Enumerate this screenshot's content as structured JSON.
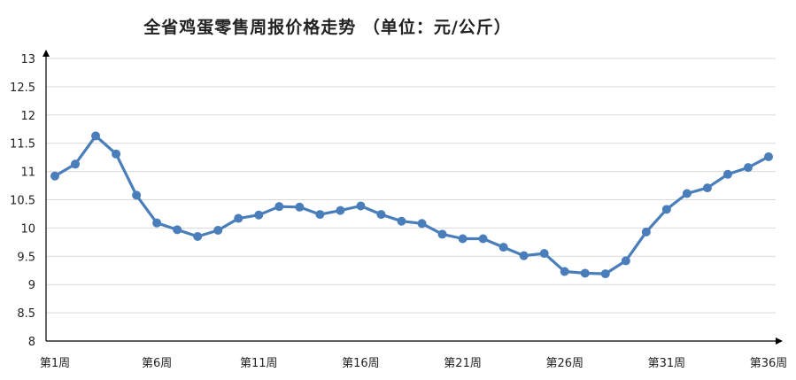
{
  "chart_data": {
    "type": "line",
    "title": "全省鸡蛋零售周报价格走势 （单位：元/公斤）",
    "xlabel": "",
    "ylabel": "",
    "ylim": [
      8,
      13
    ],
    "yticks": [
      "8",
      "8.5",
      "9",
      "9.5",
      "10",
      "10.5",
      "11",
      "11.5",
      "12",
      "12.5",
      "13"
    ],
    "x_tick_labels": [
      "第1周",
      "第6周",
      "第11周",
      "第16周",
      "第21周",
      "第26周",
      "第31周",
      "第36周"
    ],
    "x_tick_positions": [
      1,
      6,
      11,
      16,
      21,
      26,
      31,
      36
    ],
    "grid": true,
    "legend": "none",
    "colors": {
      "line": "#4a7ebb",
      "grid": "#d9d9d9",
      "axis": "#000000"
    },
    "series": [
      {
        "x": [
          1,
          2,
          3,
          4,
          5,
          6,
          7,
          8,
          9,
          10,
          11,
          12,
          13,
          14,
          15,
          16,
          17,
          18,
          19,
          20,
          21,
          22,
          23,
          24,
          25,
          26,
          27,
          28,
          29,
          30,
          31,
          32,
          33,
          34,
          35,
          36
        ],
        "values": [
          10.92,
          11.13,
          11.63,
          11.31,
          10.58,
          10.09,
          9.97,
          9.85,
          9.96,
          10.17,
          10.23,
          10.38,
          10.37,
          10.24,
          10.31,
          10.39,
          10.24,
          10.12,
          10.08,
          9.89,
          9.81,
          9.81,
          9.66,
          9.51,
          9.55,
          9.23,
          9.2,
          9.19,
          9.42,
          9.93,
          10.33,
          10.61,
          10.71,
          10.95,
          11.07,
          11.26
        ]
      }
    ]
  }
}
